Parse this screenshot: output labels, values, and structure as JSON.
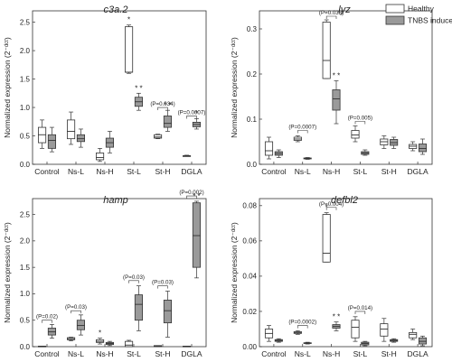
{
  "chart_data": [
    {
      "type": "box",
      "title": "c3a.2",
      "ylabel": "Normalized expression (2⁻ᵈᶜᵗ)",
      "categories": [
        "Control",
        "Ns-L",
        "Ns-H",
        "St-L",
        "St-H",
        "DGLA"
      ],
      "yticks": [
        "0.0",
        "0.5",
        "1.0",
        "1.5",
        "2.0",
        "2.5"
      ],
      "ylim": [
        0,
        2.7
      ],
      "series": [
        {
          "name": "Healthy",
          "boxes": [
            {
              "whislo": 0.28,
              "q1": 0.38,
              "med": 0.52,
              "q3": 0.65,
              "whishi": 0.78
            },
            {
              "whislo": 0.35,
              "q1": 0.45,
              "med": 0.58,
              "q3": 0.78,
              "whishi": 0.92
            },
            {
              "whislo": 0.05,
              "q1": 0.08,
              "med": 0.12,
              "q3": 0.2,
              "whishi": 0.28
            },
            {
              "whislo": 1.6,
              "q1": 1.62,
              "med": 1.62,
              "q3": 2.42,
              "whishi": 2.45
            },
            {
              "whislo": 0.45,
              "q1": 0.46,
              "med": 0.48,
              "q3": 0.52,
              "whishi": 0.53
            },
            {
              "whislo": 0.14,
              "q1": 0.14,
              "med": 0.15,
              "q3": 0.15,
              "whishi": 0.16
            }
          ]
        },
        {
          "name": "TNBS induced",
          "boxes": [
            {
              "whislo": 0.22,
              "q1": 0.28,
              "med": 0.42,
              "q3": 0.52,
              "whishi": 0.65
            },
            {
              "whislo": 0.3,
              "q1": 0.4,
              "med": 0.45,
              "q3": 0.52,
              "whishi": 0.62
            },
            {
              "whislo": 0.2,
              "q1": 0.3,
              "med": 0.38,
              "q3": 0.46,
              "whishi": 0.58
            },
            {
              "whislo": 0.95,
              "q1": 1.02,
              "med": 1.1,
              "q3": 1.18,
              "whishi": 1.25
            },
            {
              "whislo": 0.58,
              "q1": 0.65,
              "med": 0.72,
              "q3": 0.85,
              "whishi": 0.95
            },
            {
              "whislo": 0.62,
              "q1": 0.66,
              "med": 0.7,
              "q3": 0.74,
              "whishi": 0.8
            }
          ]
        }
      ],
      "annotations": [
        {
          "category": "St-L",
          "series": "Healthy",
          "text": "*"
        },
        {
          "category": "St-L",
          "series": "TNBS induced",
          "text": "* *"
        },
        {
          "category": "St-H",
          "series": "TNBS induced",
          "text": "* *"
        },
        {
          "category": "DGLA",
          "series": "TNBS induced",
          "text": "*"
        }
      ],
      "brackets": [
        {
          "category": "St-H",
          "text": "(P=0.034)",
          "y": 1.0
        },
        {
          "category": "DGLA",
          "text": "(P=0.0007)",
          "y": 0.85
        }
      ]
    },
    {
      "type": "box",
      "title": "lyz",
      "ylabel": "Normalized expression (2⁻ᵈᶜᵗ)",
      "categories": [
        "Control",
        "Ns-L",
        "Ns-H",
        "St-L",
        "St-H",
        "DGLA"
      ],
      "yticks": [
        "0.0",
        "0.1",
        "0.2",
        "0.3"
      ],
      "ylim": [
        0,
        0.34
      ],
      "series": [
        {
          "name": "Healthy",
          "boxes": [
            {
              "whislo": 0.012,
              "q1": 0.02,
              "med": 0.03,
              "q3": 0.05,
              "whishi": 0.06
            },
            {
              "whislo": 0.05,
              "q1": 0.053,
              "med": 0.056,
              "q3": 0.06,
              "whishi": 0.063
            },
            {
              "whislo": 0.19,
              "q1": 0.19,
              "med": 0.23,
              "q3": 0.315,
              "whishi": 0.32
            },
            {
              "whislo": 0.05,
              "q1": 0.058,
              "med": 0.065,
              "q3": 0.075,
              "whishi": 0.085
            },
            {
              "whislo": 0.035,
              "q1": 0.043,
              "med": 0.05,
              "q3": 0.056,
              "whishi": 0.063
            },
            {
              "whislo": 0.03,
              "q1": 0.035,
              "med": 0.04,
              "q3": 0.044,
              "whishi": 0.05
            }
          ]
        },
        {
          "name": "TNBS induced",
          "boxes": [
            {
              "whislo": 0.015,
              "q1": 0.02,
              "med": 0.024,
              "q3": 0.028,
              "whishi": 0.032
            },
            {
              "whislo": 0.011,
              "q1": 0.012,
              "med": 0.013,
              "q3": 0.014,
              "whishi": 0.015
            },
            {
              "whislo": 0.09,
              "q1": 0.12,
              "med": 0.145,
              "q3": 0.165,
              "whishi": 0.185
            },
            {
              "whislo": 0.02,
              "q1": 0.022,
              "med": 0.025,
              "q3": 0.028,
              "whishi": 0.032
            },
            {
              "whislo": 0.035,
              "q1": 0.042,
              "med": 0.048,
              "q3": 0.055,
              "whishi": 0.06
            },
            {
              "whislo": 0.022,
              "q1": 0.028,
              "med": 0.035,
              "q3": 0.045,
              "whishi": 0.056
            }
          ]
        }
      ],
      "annotations": [
        {
          "category": "Ns-H",
          "series": "TNBS induced",
          "text": "* *"
        }
      ],
      "brackets": [
        {
          "category": "Ns-L",
          "text": "(P=0.0007)",
          "y": 0.075
        },
        {
          "category": "Ns-H",
          "text": "(P=0.038)",
          "y": 0.328
        },
        {
          "category": "St-L",
          "text": "(P=0.005)",
          "y": 0.095
        }
      ]
    },
    {
      "type": "box",
      "title": "hamp",
      "ylabel": "Normalized expression (2⁻ᵈᶜᵗ)",
      "categories": [
        "Control",
        "Ns-L",
        "Ns-H",
        "St-L",
        "St-H",
        "DGLA"
      ],
      "yticks": [
        "0.0",
        "0.5",
        "1.0",
        "1.5",
        "2.0",
        "2.5"
      ],
      "ylim": [
        0,
        2.8
      ],
      "series": [
        {
          "name": "Healthy",
          "boxes": [
            {
              "whislo": 0.0,
              "q1": 0.0,
              "med": 0.0,
              "q3": 0.01,
              "whishi": 0.01
            },
            {
              "whislo": 0.11,
              "q1": 0.13,
              "med": 0.15,
              "q3": 0.17,
              "whishi": 0.18
            },
            {
              "whislo": 0.05,
              "q1": 0.08,
              "med": 0.1,
              "q3": 0.13,
              "whishi": 0.16
            },
            {
              "whislo": 0.0,
              "q1": 0.0,
              "med": 0.03,
              "q3": 0.1,
              "whishi": 0.12
            },
            {
              "whislo": 0.0,
              "q1": 0.0,
              "med": 0.01,
              "q3": 0.02,
              "whishi": 0.02
            },
            {
              "whislo": 0.0,
              "q1": 0.0,
              "med": 0.0,
              "q3": 0.01,
              "whishi": 0.01
            }
          ]
        },
        {
          "name": "TNBS induced",
          "boxes": [
            {
              "whislo": 0.16,
              "q1": 0.22,
              "med": 0.28,
              "q3": 0.35,
              "whishi": 0.42
            },
            {
              "whislo": 0.22,
              "q1": 0.32,
              "med": 0.4,
              "q3": 0.5,
              "whishi": 0.6
            },
            {
              "whislo": 0.02,
              "q1": 0.04,
              "med": 0.06,
              "q3": 0.08,
              "whishi": 0.1
            },
            {
              "whislo": 0.3,
              "q1": 0.5,
              "med": 0.8,
              "q3": 0.98,
              "whishi": 1.15
            },
            {
              "whislo": 0.18,
              "q1": 0.45,
              "med": 0.68,
              "q3": 0.88,
              "whishi": 1.05
            },
            {
              "whislo": 1.3,
              "q1": 1.5,
              "med": 2.1,
              "q3": 2.72,
              "whishi": 2.75
            }
          ]
        }
      ],
      "annotations": [
        {
          "category": "Ns-H",
          "series": "Healthy",
          "text": "*"
        },
        {
          "category": "DGLA",
          "series": "TNBS induced",
          "text": "* *"
        }
      ],
      "brackets": [
        {
          "category": "Control",
          "text": "(P=0.02)",
          "y": 0.5
        },
        {
          "category": "Ns-L",
          "text": "(P=0.03)",
          "y": 0.68
        },
        {
          "category": "St-L",
          "text": "(P=0.03)",
          "y": 1.25
        },
        {
          "category": "St-H",
          "text": "(P=0.03)",
          "y": 1.15
        },
        {
          "category": "DGLA",
          "text": "(P=0.002)",
          "y": 2.85
        }
      ]
    },
    {
      "type": "box",
      "title": "defbl2",
      "ylabel": "Normalized expression (2⁻ᵈᶜᵗ)",
      "categories": [
        "Control",
        "Ns-L",
        "Ns-H",
        "St-L",
        "St-H",
        "DGLA"
      ],
      "yticks": [
        "0.00",
        "0.02",
        "0.04",
        "0.06",
        "0.08"
      ],
      "ylim": [
        0,
        0.084
      ],
      "series": [
        {
          "name": "Healthy",
          "boxes": [
            {
              "whislo": 0.003,
              "q1": 0.005,
              "med": 0.0075,
              "q3": 0.01,
              "whishi": 0.012
            },
            {
              "whislo": 0.007,
              "q1": 0.0075,
              "med": 0.008,
              "q3": 0.0085,
              "whishi": 0.009
            },
            {
              "whislo": 0.048,
              "q1": 0.048,
              "med": 0.053,
              "q3": 0.075,
              "whishi": 0.076
            },
            {
              "whislo": 0.003,
              "q1": 0.005,
              "med": 0.011,
              "q3": 0.015,
              "whishi": 0.017
            },
            {
              "whislo": 0.003,
              "q1": 0.006,
              "med": 0.01,
              "q3": 0.013,
              "whishi": 0.016
            },
            {
              "whislo": 0.004,
              "q1": 0.005,
              "med": 0.007,
              "q3": 0.008,
              "whishi": 0.01
            }
          ]
        },
        {
          "name": "TNBS induced",
          "boxes": [
            {
              "whislo": 0.0025,
              "q1": 0.003,
              "med": 0.0035,
              "q3": 0.004,
              "whishi": 0.0045
            },
            {
              "whislo": 0.0015,
              "q1": 0.0018,
              "med": 0.002,
              "q3": 0.0022,
              "whishi": 0.0025
            },
            {
              "whislo": 0.009,
              "q1": 0.0105,
              "med": 0.0115,
              "q3": 0.0125,
              "whishi": 0.014
            },
            {
              "whislo": 0.0005,
              "q1": 0.001,
              "med": 0.0018,
              "q3": 0.0025,
              "whishi": 0.003
            },
            {
              "whislo": 0.0025,
              "q1": 0.003,
              "med": 0.0035,
              "q3": 0.004,
              "whishi": 0.0045
            },
            {
              "whislo": 0.0005,
              "q1": 0.0015,
              "med": 0.003,
              "q3": 0.005,
              "whishi": 0.006
            }
          ]
        }
      ],
      "annotations": [
        {
          "category": "Ns-H",
          "series": "Healthy",
          "text": "*"
        },
        {
          "category": "Ns-H",
          "series": "TNBS induced",
          "text": "* *"
        }
      ],
      "brackets": [
        {
          "category": "Ns-L",
          "text": "(P=0.0002)",
          "y": 0.012
        },
        {
          "category": "Ns-H",
          "text": "(P=0.004)",
          "y": 0.079
        },
        {
          "category": "St-L",
          "text": "(P=0.014)",
          "y": 0.02
        }
      ]
    }
  ],
  "legend": {
    "placement": "top-right",
    "items": [
      {
        "label": "Healthy",
        "fill": "#ffffff"
      },
      {
        "label": "TNBS induced",
        "fill": "#9a9a9a"
      }
    ]
  },
  "colors": {
    "healthy": "#ffffff",
    "tnbs": "#9a9a9a",
    "line": "#333333"
  }
}
